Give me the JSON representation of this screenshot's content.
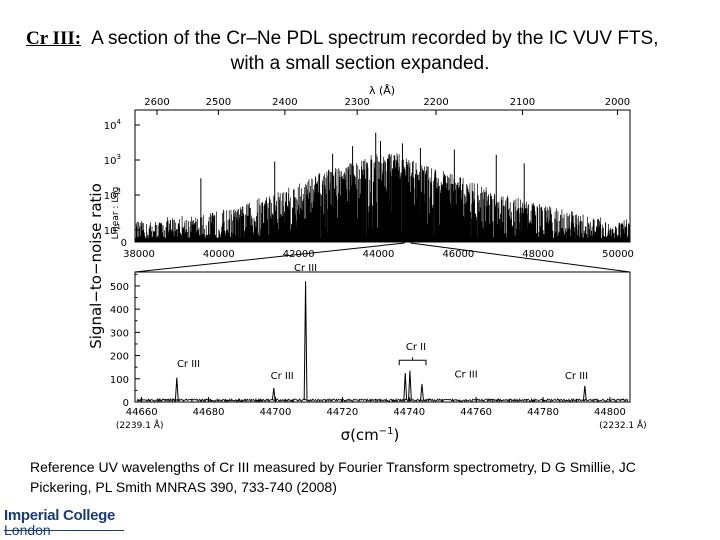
{
  "title": {
    "tag": "Cr III:",
    "line1": "A section of the Cr–Ne PDL spectrum recorded by the IC VUV FTS,",
    "line2": "with a small section expanded."
  },
  "reference": "Reference UV wavelengths of Cr III measured by Fourier Transform spectrometry, D G Smillie, JC Pickering, PL Smith MNRAS 390, 733-740 (2008)",
  "logo": {
    "line1": "Imperial College",
    "line2": "London"
  },
  "colors": {
    "ink": "#000000",
    "logo": "#1a3b73"
  },
  "chart_data": [
    {
      "type": "line",
      "panel": "overview",
      "top_axis_label": "λ (Å)",
      "top_ticks": [
        "2600",
        "2500",
        "2400",
        "2300",
        "2200",
        "2100",
        "2000"
      ],
      "top_tick_values": [
        2600,
        2500,
        2400,
        2300,
        2200,
        2100,
        2000
      ],
      "x_ticks": [
        "38000",
        "40000",
        "42000",
        "44000",
        "46000",
        "48000",
        "50000"
      ],
      "x_tick_values": [
        38000,
        40000,
        42000,
        44000,
        46000,
        48000,
        50000
      ],
      "xlim": [
        37900,
        50300
      ],
      "y_ticks": [
        "0",
        "10",
        "10",
        "10",
        "10"
      ],
      "y_tick_exponents": [
        "",
        "1",
        "2",
        "3",
        "4"
      ],
      "y_tick_values": [
        0,
        10,
        100,
        1000,
        10000
      ],
      "ylabel_inner": "Linear : Log",
      "ylabel": "Signal−to−noise ratio",
      "envelope": [
        [
          38000,
          10
        ],
        [
          38500,
          12
        ],
        [
          39000,
          18
        ],
        [
          39500,
          15
        ],
        [
          40000,
          25
        ],
        [
          40500,
          30
        ],
        [
          41000,
          60
        ],
        [
          41500,
          90
        ],
        [
          42000,
          150
        ],
        [
          42500,
          300
        ],
        [
          43000,
          500
        ],
        [
          43500,
          700
        ],
        [
          44000,
          1200
        ],
        [
          44500,
          1100
        ],
        [
          45000,
          600
        ],
        [
          45500,
          400
        ],
        [
          46000,
          250
        ],
        [
          46500,
          150
        ],
        [
          47000,
          90
        ],
        [
          47500,
          60
        ],
        [
          48000,
          40
        ],
        [
          48500,
          30
        ],
        [
          49000,
          20
        ],
        [
          49500,
          15
        ],
        [
          50000,
          12
        ]
      ],
      "peaks": [
        [
          42850,
          1500
        ],
        [
          43350,
          2500
        ],
        [
          43930,
          6000
        ],
        [
          44050,
          3500
        ],
        [
          44600,
          3000
        ],
        [
          45050,
          2200
        ],
        [
          45900,
          2000
        ],
        [
          46950,
          1400
        ],
        [
          47650,
          800
        ],
        [
          41400,
          900
        ],
        [
          39550,
          300
        ]
      ]
    },
    {
      "type": "line",
      "panel": "expanded",
      "x_ticks": [
        "44660",
        "44680",
        "44700",
        "44720",
        "44740",
        "44760",
        "44780",
        "44800"
      ],
      "x_tick_values": [
        44660,
        44680,
        44700,
        44720,
        44740,
        44760,
        44780,
        44800
      ],
      "xlim": [
        44658,
        44806
      ],
      "x_end_labels": [
        "(2239.1 Å)",
        "(2232.1 Å)"
      ],
      "xlabel": "σ(cm",
      "xlabel_exp": "−1",
      "xlabel_close": ")",
      "y_ticks": [
        "0",
        "100",
        "200",
        "300",
        "400",
        "500"
      ],
      "y_tick_values": [
        0,
        100,
        200,
        300,
        400,
        500
      ],
      "ylim": [
        0,
        560
      ],
      "lines": [
        {
          "x": 44670.5,
          "y": 105
        },
        {
          "x": 44699.5,
          "y": 60
        },
        {
          "x": 44709.0,
          "y": 520
        },
        {
          "x": 44738.8,
          "y": 125
        },
        {
          "x": 44740.2,
          "y": 135
        },
        {
          "x": 44743.8,
          "y": 78
        },
        {
          "x": 44792.5,
          "y": 70
        }
      ],
      "annotations": [
        {
          "text": "Cr III",
          "x": 44674.0,
          "y": 150
        },
        {
          "text": "Cr III",
          "x": 44702.0,
          "y": 100
        },
        {
          "text": "Cr III",
          "x": 44709.0,
          "y": 565
        },
        {
          "text": "Cr II",
          "x": 44742.0,
          "y": 225
        },
        {
          "text": "Cr III",
          "x": 44757.0,
          "y": 105
        },
        {
          "text": "Cr III",
          "x": 44790.0,
          "y": 100
        }
      ],
      "bracket": {
        "x1": 44737.0,
        "x2": 44745.0,
        "y": 180
      },
      "noise_level": 8
    }
  ]
}
